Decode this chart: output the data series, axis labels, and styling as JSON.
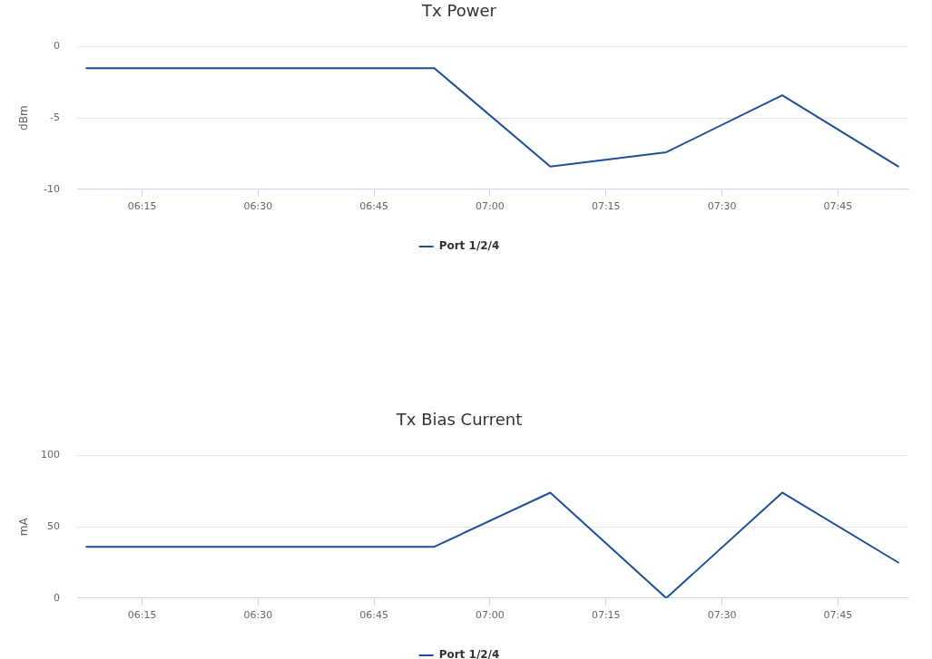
{
  "chart_data": [
    {
      "type": "line",
      "title": "Tx Power",
      "ylabel": "dBm",
      "x": [
        6.13,
        6.38,
        6.63,
        6.88,
        7.13,
        7.38,
        7.63,
        7.88
      ],
      "xlim": [
        6.11,
        7.9
      ],
      "xticks": [
        {
          "value": 6.25,
          "label": "06:15"
        },
        {
          "value": 6.5,
          "label": "06:30"
        },
        {
          "value": 6.75,
          "label": "06:45"
        },
        {
          "value": 7,
          "label": "07:00"
        },
        {
          "value": 7.25,
          "label": "07:15"
        },
        {
          "value": 7.5,
          "label": "07:30"
        },
        {
          "value": 7.75,
          "label": "07:45"
        }
      ],
      "ylim": [
        -10,
        0
      ],
      "yticks": [
        -10,
        -5,
        0
      ],
      "series": [
        {
          "name": "Port 1/2/4",
          "color": "#1f4e9c",
          "values": [
            -1.5,
            -1.5,
            -1.5,
            -1.5,
            -8.4,
            -7.4,
            -3.4,
            -8.4
          ]
        }
      ],
      "grid": "y",
      "legend": "bottom",
      "marker": "none",
      "line_style": "solid"
    },
    {
      "type": "line",
      "title": "Tx Bias Current",
      "ylabel": "mA",
      "x": [
        6.13,
        6.38,
        6.63,
        6.88,
        7.13,
        7.38,
        7.63,
        7.88
      ],
      "xlim": [
        6.11,
        7.9
      ],
      "xticks": [
        {
          "value": 6.25,
          "label": "06:15"
        },
        {
          "value": 6.5,
          "label": "06:30"
        },
        {
          "value": 6.75,
          "label": "06:45"
        },
        {
          "value": 7,
          "label": "07:00"
        },
        {
          "value": 7.25,
          "label": "07:15"
        },
        {
          "value": 7.5,
          "label": "07:30"
        },
        {
          "value": 7.75,
          "label": "07:45"
        }
      ],
      "ylim": [
        0,
        100
      ],
      "yticks": [
        0,
        50,
        100
      ],
      "series": [
        {
          "name": "Port 1/2/4",
          "color": "#1f4e9c",
          "values": [
            36,
            36,
            36,
            36,
            74,
            0,
            74,
            25
          ]
        }
      ],
      "grid": "y",
      "legend": "bottom",
      "marker": "none",
      "line_style": "solid"
    }
  ]
}
